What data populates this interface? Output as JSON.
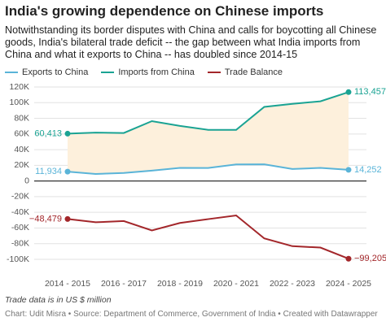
{
  "chart_data": {
    "type": "line",
    "title": "India's growing dependence on Chinese imports",
    "subtitle": "Notwithstanding its border disputes with China and calls for boycotting all Chinese goods, India's bilateral trade deficit -- the gap between what India imports from China and what it exports to China -- has doubled since 2014-15",
    "categories": [
      "2014 - 2015",
      null,
      "2016 - 2017",
      null,
      "2018 - 2019",
      null,
      "2020 - 2021",
      null,
      "2022 - 2023",
      null,
      "2024 - 2025"
    ],
    "series": [
      {
        "name": "Exports to China",
        "color": "#5ab4d8",
        "values": [
          11934,
          9000,
          10200,
          13300,
          16700,
          16600,
          21200,
          21300,
          15300,
          16700,
          14252
        ],
        "value_labels": [
          "11,934",
          null,
          null,
          null,
          null,
          null,
          null,
          null,
          null,
          null,
          "14,252"
        ]
      },
      {
        "name": "Imports from China",
        "color": "#1aa393",
        "values": [
          60413,
          61700,
          61300,
          76400,
          70300,
          65300,
          65200,
          94600,
          98500,
          101700,
          113457
        ],
        "value_labels": [
          "60,413",
          null,
          null,
          null,
          null,
          null,
          null,
          null,
          null,
          null,
          "113,457"
        ]
      },
      {
        "name": "Trade Balance",
        "color": "#a3262a",
        "values": [
          -48479,
          -52700,
          -51100,
          -63100,
          -53600,
          -48700,
          -44000,
          -73300,
          -83200,
          -85000,
          -99205
        ],
        "value_labels": [
          "−48,479",
          null,
          null,
          null,
          null,
          null,
          null,
          null,
          null,
          null,
          "−99,205"
        ]
      }
    ],
    "gap_fill": "#fdf0dc",
    "ylim": [
      -100000,
      120000
    ],
    "yticks": [
      {
        "value": 120000,
        "label": "120K"
      },
      {
        "value": 100000,
        "label": "100K"
      },
      {
        "value": 80000,
        "label": "80K"
      },
      {
        "value": 60000,
        "label": "60K"
      },
      {
        "value": 40000,
        "label": "40K"
      },
      {
        "value": 20000,
        "label": "20K"
      },
      0,
      {
        "value": -20000,
        "label": "-20K"
      },
      {
        "value": -40000,
        "label": "-40K"
      },
      {
        "value": -60000,
        "label": "-60K"
      },
      {
        "value": -80000,
        "label": "-80K"
      },
      {
        "value": -100000,
        "label": "-100K"
      }
    ],
    "grid": true,
    "note": "Trade data is in US $ million",
    "source": "Chart: Udit Misra • Source: Department of Commerce, Government of India • Created with Datawrapper"
  }
}
